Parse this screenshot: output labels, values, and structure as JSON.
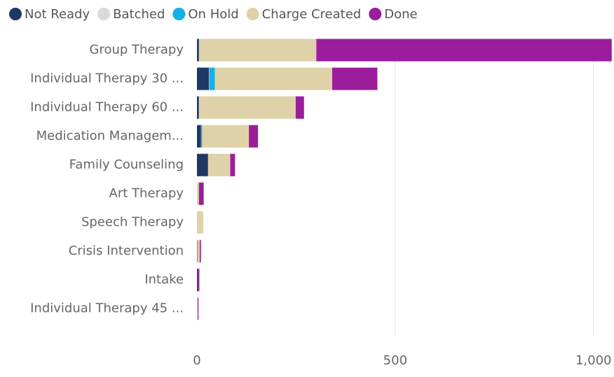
{
  "chart_data": {
    "type": "bar",
    "orientation": "horizontal",
    "stacked": true,
    "categories": [
      "Group Therapy",
      "Individual Therapy 30 ...",
      "Individual Therapy 60 ...",
      "Medication Managem...",
      "Family Counseling",
      "Art Therapy",
      "Speech Therapy",
      "Crisis Intervention",
      "Intake",
      "Individual Therapy 45 ..."
    ],
    "series": [
      {
        "name": "Not Ready",
        "color": "#1f3864",
        "values": [
          5,
          30,
          5,
          10,
          28,
          0,
          0,
          1,
          3,
          0
        ]
      },
      {
        "name": "Batched",
        "color": "#d9d9d9",
        "values": [
          0,
          1,
          1,
          0,
          0,
          0,
          0,
          0,
          0,
          0
        ]
      },
      {
        "name": "On Hold",
        "color": "#12b0e5",
        "values": [
          0,
          14,
          0,
          3,
          0,
          0,
          0,
          0,
          0,
          0
        ]
      },
      {
        "name": "Charge Created",
        "color": "#dfd2a8",
        "values": [
          296,
          296,
          243,
          118,
          56,
          5,
          16,
          6,
          0,
          2
        ]
      },
      {
        "name": "Done",
        "color": "#9b1d9b",
        "values": [
          745,
          114,
          21,
          23,
          12,
          12,
          0,
          3,
          3,
          2
        ]
      }
    ],
    "xlim": [
      0,
      1050
    ],
    "xticks": [
      0,
      500,
      {
        "value": 1000,
        "label": "1,000"
      }
    ],
    "grid": true,
    "legend": "top-left"
  }
}
